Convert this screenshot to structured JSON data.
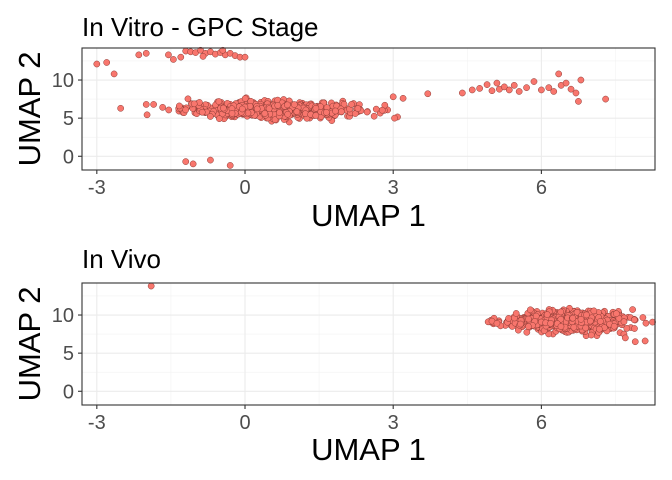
{
  "chart_data": [
    {
      "type": "scatter",
      "title": "In Vitro - GPC Stage",
      "xlabel": "UMAP 1",
      "ylabel": "UMAP 2",
      "xlim": [
        -3.3,
        8.3
      ],
      "ylim": [
        -1.8,
        14.2
      ],
      "xticks": [
        -3,
        0,
        3,
        6
      ],
      "yticks": [
        0,
        5,
        10
      ],
      "grid": true,
      "point_color": "#F8766D",
      "point_stroke": "#8B3A34",
      "points": [
        [
          -3.0,
          12.1
        ],
        [
          -2.8,
          12.3
        ],
        [
          -2.65,
          10.8
        ],
        [
          -2.15,
          13.3
        ],
        [
          -2.0,
          13.5
        ],
        [
          -1.55,
          13.3
        ],
        [
          -1.45,
          12.7
        ],
        [
          -1.2,
          13.8
        ],
        [
          -1.1,
          13.7
        ],
        [
          -1.0,
          13.6
        ],
        [
          -0.9,
          13.9
        ],
        [
          -0.8,
          13.5
        ],
        [
          -0.7,
          13.7
        ],
        [
          -0.6,
          13.4
        ],
        [
          -0.5,
          13.6
        ],
        [
          -0.4,
          13.3
        ],
        [
          -0.3,
          13.5
        ],
        [
          -0.2,
          13.2
        ],
        [
          -0.1,
          13.0
        ],
        [
          0.0,
          13.0
        ],
        [
          -1.3,
          13.0
        ],
        [
          -0.85,
          13.1
        ],
        [
          -0.45,
          13.9
        ],
        [
          -1.85,
          6.8
        ],
        [
          -1.2,
          -0.7
        ],
        [
          -1.05,
          -1.0
        ],
        [
          -0.7,
          -0.5
        ],
        [
          -0.3,
          -1.2
        ],
        [
          3.0,
          7.8
        ],
        [
          3.2,
          7.6
        ],
        [
          3.7,
          8.2
        ],
        [
          4.4,
          8.3
        ],
        [
          4.6,
          8.7
        ],
        [
          4.75,
          8.9
        ],
        [
          4.9,
          9.4
        ],
        [
          5.0,
          8.6
        ],
        [
          5.1,
          9.6
        ],
        [
          5.15,
          8.8
        ],
        [
          5.25,
          9.1
        ],
        [
          5.35,
          8.7
        ],
        [
          5.45,
          9.3
        ],
        [
          5.55,
          8.5
        ],
        [
          5.7,
          9.0
        ],
        [
          5.85,
          9.8
        ],
        [
          6.0,
          8.7
        ],
        [
          6.15,
          9.0
        ],
        [
          6.25,
          8.5
        ],
        [
          6.35,
          10.8
        ],
        [
          6.4,
          9.3
        ],
        [
          6.5,
          9.6
        ],
        [
          6.6,
          8.8
        ],
        [
          6.7,
          8.3
        ],
        [
          6.75,
          7.2
        ],
        [
          6.8,
          10.0
        ],
        [
          7.3,
          7.5
        ]
      ],
      "cluster": {
        "x_center": 0.5,
        "x_spread": 1.15,
        "y_center": 6.1,
        "y_spread": 0.75,
        "count": 650
      }
    },
    {
      "type": "scatter",
      "title": "In Vivo",
      "xlabel": "UMAP 1",
      "ylabel": "UMAP 2",
      "xlim": [
        -3.3,
        8.3
      ],
      "ylim": [
        -1.8,
        14.2
      ],
      "xticks": [
        -3,
        0,
        3,
        6
      ],
      "yticks": [
        0,
        5,
        10
      ],
      "grid": true,
      "point_color": "#F8766D",
      "point_stroke": "#8B3A34",
      "points": [
        [
          -1.9,
          13.8
        ],
        [
          7.9,
          6.5
        ],
        [
          8.1,
          6.6
        ],
        [
          7.7,
          7.0
        ],
        [
          5.0,
          9.2
        ],
        [
          5.1,
          8.9
        ]
      ],
      "cluster": {
        "x_center": 6.5,
        "x_spread": 0.75,
        "y_center": 9.2,
        "y_spread": 0.9,
        "count": 850
      }
    }
  ]
}
